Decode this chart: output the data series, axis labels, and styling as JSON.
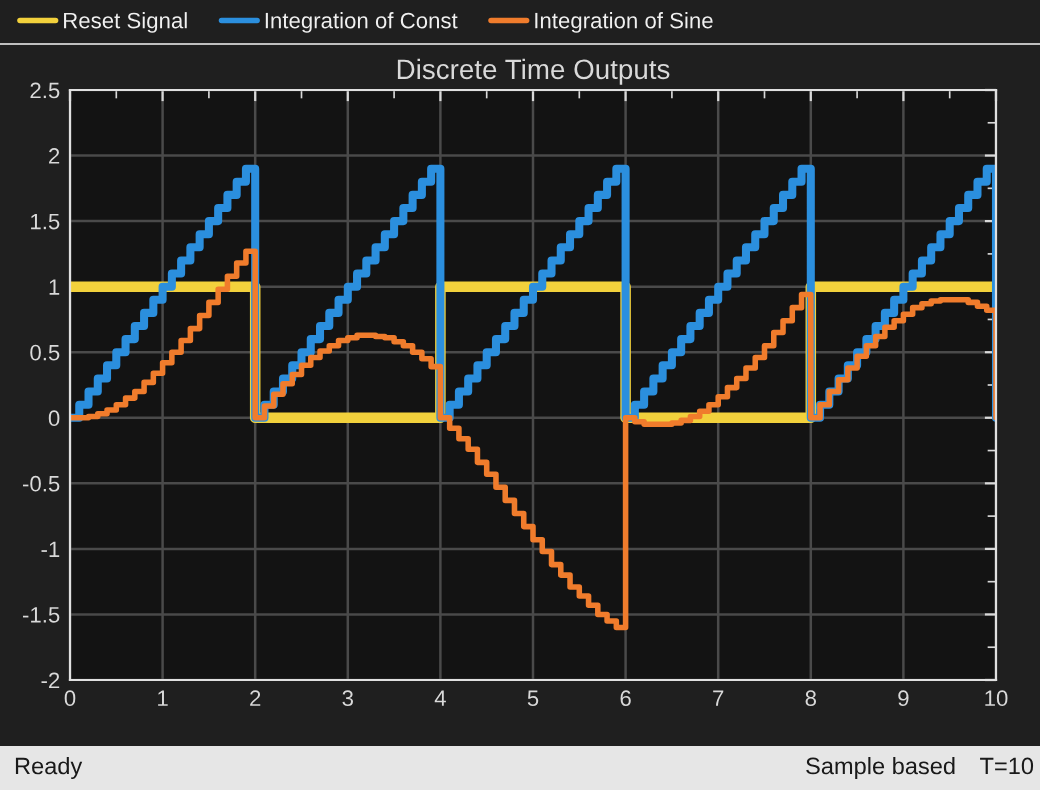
{
  "chart_data": {
    "type": "step",
    "title": "Discrete Time Outputs",
    "x": [
      0,
      0.1,
      0.2,
      0.3,
      0.4,
      0.5,
      0.6,
      0.7,
      0.8,
      0.9,
      1,
      1.1,
      1.2,
      1.3,
      1.4,
      1.5,
      1.6,
      1.7,
      1.8,
      1.9,
      2,
      2.1,
      2.2,
      2.3,
      2.4,
      2.5,
      2.6,
      2.7,
      2.8,
      2.9,
      3,
      3.1,
      3.2,
      3.3,
      3.4,
      3.5,
      3.6,
      3.7,
      3.8,
      3.9,
      4,
      4.1,
      4.2,
      4.3,
      4.4,
      4.5,
      4.6,
      4.7,
      4.8,
      4.9,
      5,
      5.1,
      5.2,
      5.3,
      5.4,
      5.5,
      5.6,
      5.7,
      5.8,
      5.9,
      6,
      6.1,
      6.2,
      6.3,
      6.4,
      6.5,
      6.6,
      6.7,
      6.8,
      6.9,
      7,
      7.1,
      7.2,
      7.3,
      7.4,
      7.5,
      7.6,
      7.7,
      7.8,
      7.9,
      8,
      8.1,
      8.2,
      8.3,
      8.4,
      8.5,
      8.6,
      8.7,
      8.8,
      8.9,
      9,
      9.1,
      9.2,
      9.3,
      9.4,
      9.5,
      9.6,
      9.7,
      9.8,
      9.9,
      10
    ],
    "series": [
      {
        "name": "Reset Signal",
        "color": "#f2d13c",
        "values": [
          1,
          1,
          1,
          1,
          1,
          1,
          1,
          1,
          1,
          1,
          1,
          1,
          1,
          1,
          1,
          1,
          1,
          1,
          1,
          1,
          0,
          0,
          0,
          0,
          0,
          0,
          0,
          0,
          0,
          0,
          0,
          0,
          0,
          0,
          0,
          0,
          0,
          0,
          0,
          0,
          1,
          1,
          1,
          1,
          1,
          1,
          1,
          1,
          1,
          1,
          1,
          1,
          1,
          1,
          1,
          1,
          1,
          1,
          1,
          1,
          0,
          0,
          0,
          0,
          0,
          0,
          0,
          0,
          0,
          0,
          0,
          0,
          0,
          0,
          0,
          0,
          0,
          0,
          0,
          0,
          1,
          1,
          1,
          1,
          1,
          1,
          1,
          1,
          1,
          1,
          1,
          1,
          1,
          1,
          1,
          1,
          1,
          1,
          1,
          1,
          1
        ]
      },
      {
        "name": "Integration of Const",
        "color": "#2b8fde",
        "values": [
          0,
          0.1,
          0.2,
          0.3,
          0.4,
          0.5,
          0.6,
          0.7,
          0.8,
          0.9,
          1,
          1.1,
          1.2,
          1.3,
          1.4,
          1.5,
          1.6,
          1.7,
          1.8,
          1.9,
          0,
          0.1,
          0.2,
          0.3,
          0.4,
          0.5,
          0.6,
          0.7,
          0.8,
          0.9,
          1,
          1.1,
          1.2,
          1.3,
          1.4,
          1.5,
          1.6,
          1.7,
          1.8,
          1.9,
          0,
          0.1,
          0.2,
          0.3,
          0.4,
          0.5,
          0.6,
          0.7,
          0.8,
          0.9,
          1,
          1.1,
          1.2,
          1.3,
          1.4,
          1.5,
          1.6,
          1.7,
          1.8,
          1.9,
          0,
          0.1,
          0.2,
          0.3,
          0.4,
          0.5,
          0.6,
          0.7,
          0.8,
          0.9,
          1,
          1.1,
          1.2,
          1.3,
          1.4,
          1.5,
          1.6,
          1.7,
          1.8,
          1.9,
          0,
          0.1,
          0.2,
          0.3,
          0.4,
          0.5,
          0.6,
          0.7,
          0.8,
          0.9,
          1,
          1.1,
          1.2,
          1.3,
          1.4,
          1.5,
          1.6,
          1.7,
          1.8,
          1.9,
          0
        ]
      },
      {
        "name": "Integration of Sine",
        "color": "#f07c2c",
        "values": [
          0,
          0,
          0.01,
          0.03,
          0.06,
          0.1,
          0.15,
          0.2,
          0.27,
          0.34,
          0.42,
          0.5,
          0.59,
          0.68,
          0.78,
          0.88,
          0.98,
          1.08,
          1.18,
          1.27,
          0,
          0.09,
          0.18,
          0.26,
          0.33,
          0.4,
          0.46,
          0.51,
          0.55,
          0.59,
          0.61,
          0.63,
          0.63,
          0.62,
          0.61,
          0.58,
          0.55,
          0.5,
          0.45,
          0.39,
          0,
          -0.08,
          -0.16,
          -0.24,
          -0.34,
          -0.43,
          -0.53,
          -0.63,
          -0.73,
          -0.83,
          -0.93,
          -1.02,
          -1.12,
          -1.2,
          -1.29,
          -1.36,
          -1.43,
          -1.5,
          -1.55,
          -1.6,
          0,
          -0.03,
          -0.05,
          -0.05,
          -0.05,
          -0.04,
          -0.02,
          0.01,
          0.05,
          0.1,
          0.16,
          0.23,
          0.3,
          0.38,
          0.46,
          0.55,
          0.65,
          0.74,
          0.84,
          0.94,
          0,
          0.1,
          0.2,
          0.29,
          0.38,
          0.47,
          0.55,
          0.62,
          0.69,
          0.74,
          0.79,
          0.84,
          0.87,
          0.89,
          0.9,
          0.9,
          0.9,
          0.88,
          0.85,
          0.82,
          0
        ]
      }
    ],
    "xlim": [
      0,
      10
    ],
    "xticks": [
      0,
      1,
      2,
      3,
      4,
      5,
      6,
      7,
      8,
      9,
      10
    ],
    "ylim": [
      -2,
      2.5
    ],
    "yticks": [
      -2,
      -1.5,
      -1,
      -0.5,
      0,
      0.5,
      1,
      1.5,
      2,
      2.5
    ],
    "grid": true,
    "legend": "top",
    "marker": "none",
    "line_style": "solid",
    "annotations": [
      "Ready",
      "Sample based",
      "T=10"
    ]
  }
}
